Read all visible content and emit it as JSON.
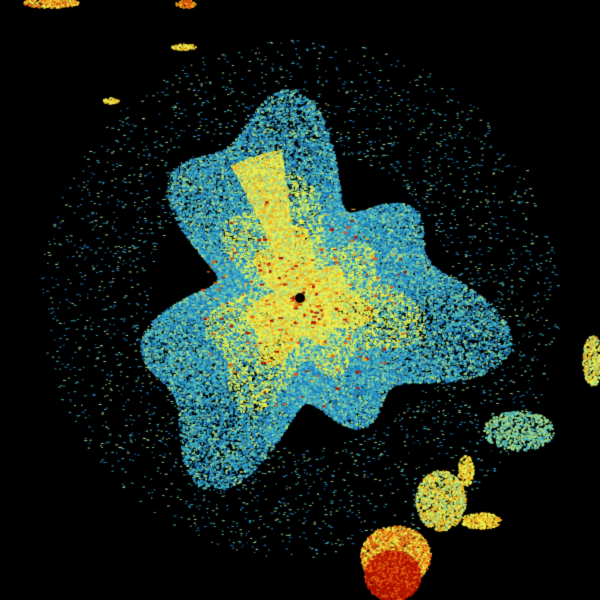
{
  "image": {
    "type": "weather-radar-reflectivity",
    "background_color": "#000000",
    "palette": {
      "weak": "#1f7fc0",
      "light": "#3fb8c8",
      "moderate": "#9fd88a",
      "medium": "#e8ee50",
      "strong": "#f0b020",
      "heavy": "#e05a10",
      "intense": "#b01000"
    },
    "radar_site_marker": "black-dot"
  }
}
